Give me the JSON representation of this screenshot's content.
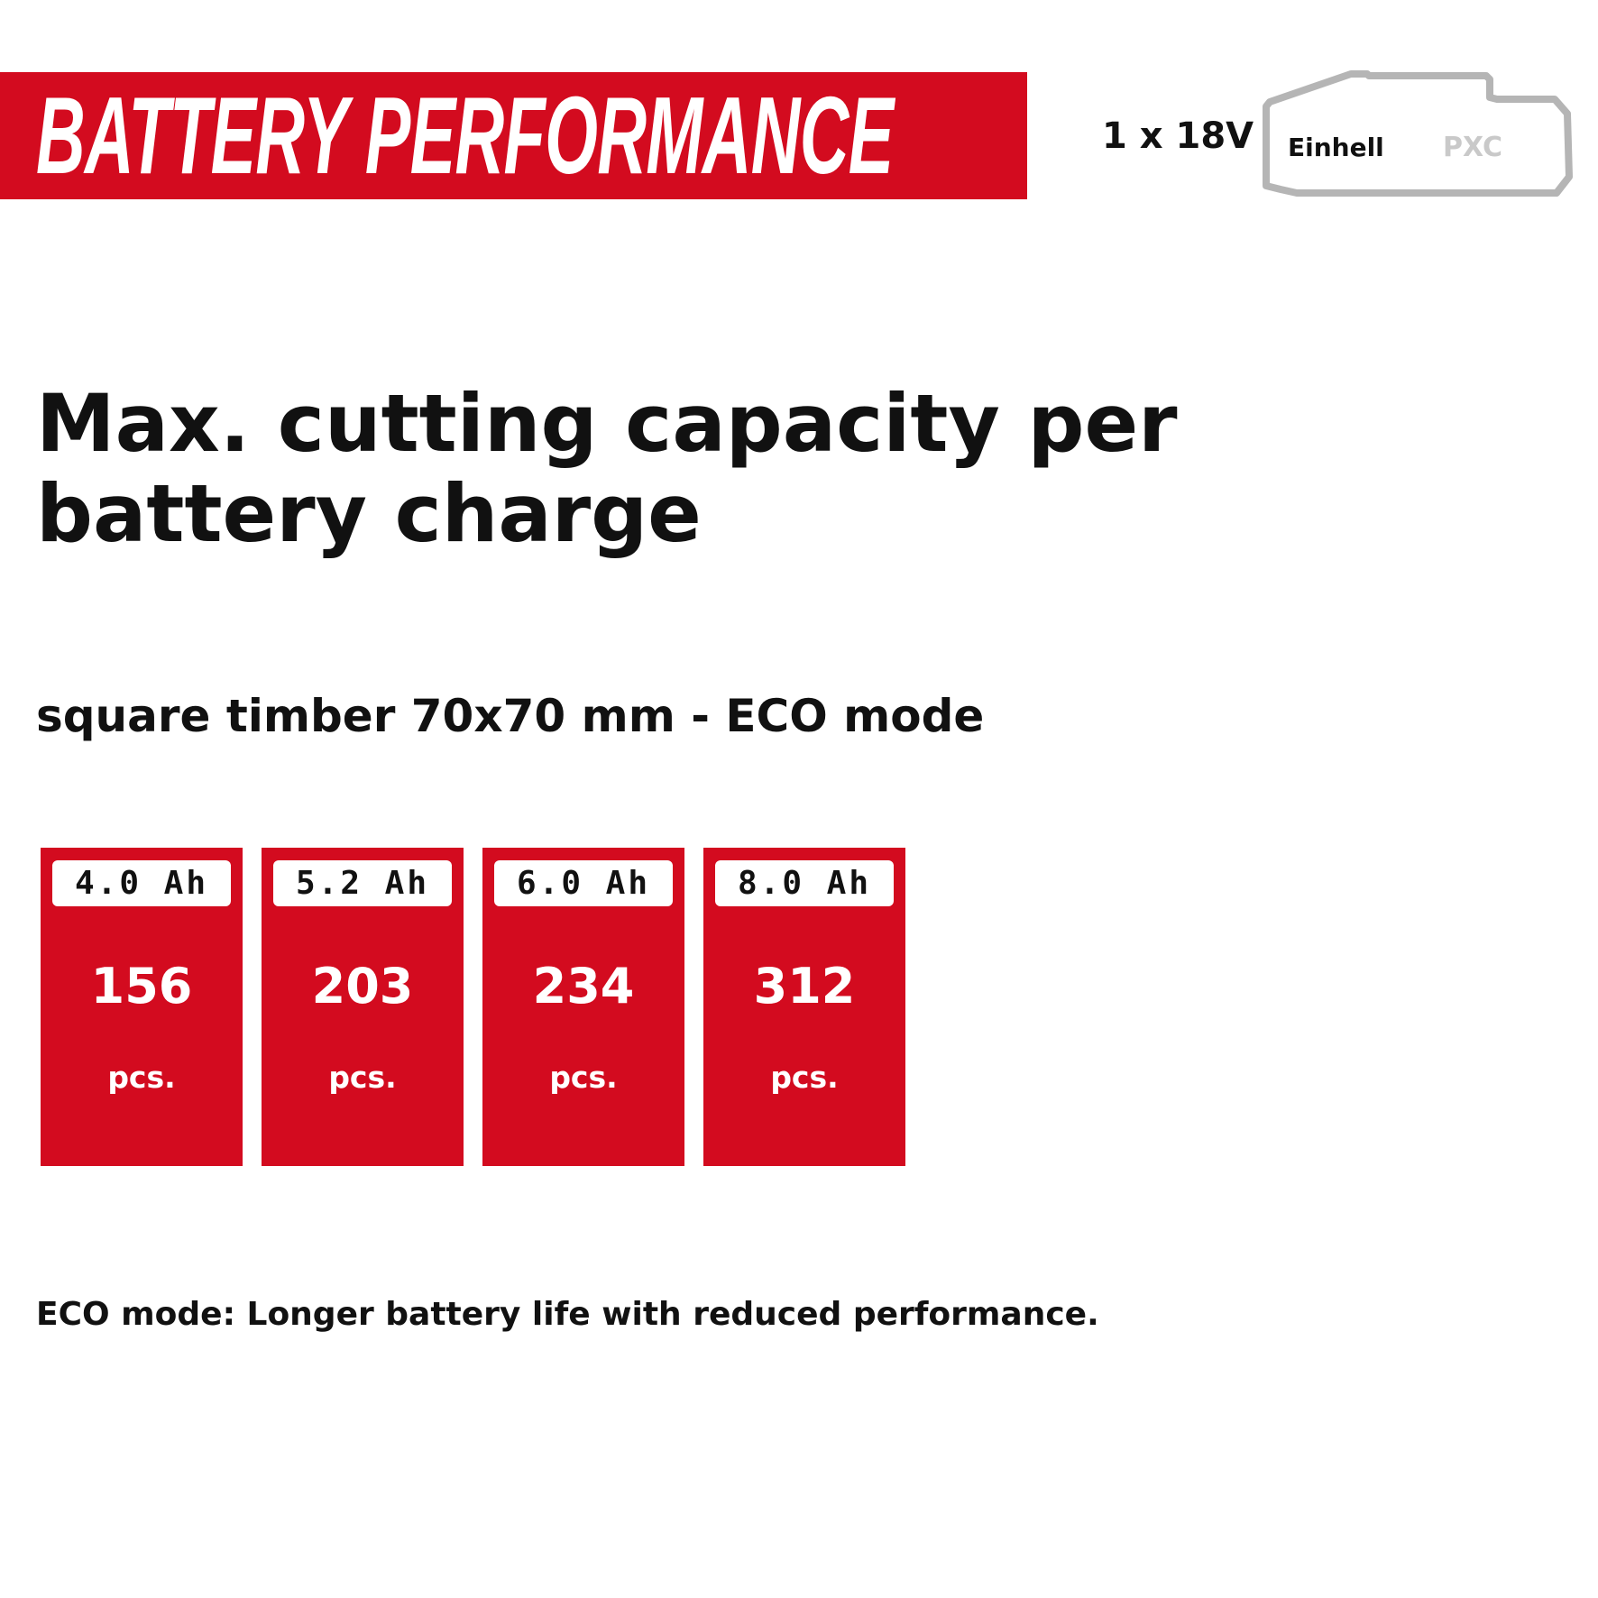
{
  "banner": {
    "title": "BATTERY PERFORMANCE"
  },
  "battery_info": {
    "voltage": "1 x 18V",
    "brand": "Einhell",
    "system": "PXC"
  },
  "heading": "Max. cutting capacity per battery charge",
  "subheading": "square timber 70x70 mm - ECO mode",
  "cards": [
    {
      "capacity": "4.0 Ah",
      "value": "156",
      "unit": "pcs."
    },
    {
      "capacity": "5.2 Ah",
      "value": "203",
      "unit": "pcs."
    },
    {
      "capacity": "6.0 Ah",
      "value": "234",
      "unit": "pcs."
    },
    {
      "capacity": "8.0 Ah",
      "value": "312",
      "unit": "pcs."
    }
  ],
  "footnote": "ECO mode: Longer battery life with reduced performance.",
  "colors": {
    "accent": "#d30b1f",
    "text": "#111111",
    "outline": "#b5b5b5"
  }
}
